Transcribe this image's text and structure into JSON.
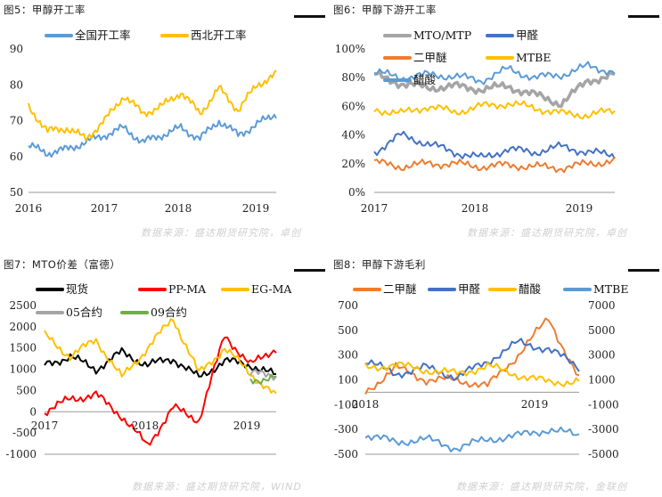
{
  "panels": [
    {
      "title": "图5：甲醇开工率",
      "source": ""
    },
    {
      "title": "图6：甲醇下游开工率",
      "source": "数据来源：盛达期货研究院，卓创"
    },
    {
      "title": "图7：MTO价差（富德）",
      "source": ""
    },
    {
      "title": "图8：甲醇下游毛利",
      "source": "数据来源：盛达期货研究院，WIND"
    }
  ],
  "footer_right": "数据来源：盛达期货研究院，金联创",
  "source_left_top": "数据来源：盛达期货研究院，卓创",
  "colors": {
    "blue": "#5b9bd5",
    "gold": "#ffc000",
    "orange": "#ed7d31",
    "darkblue": "#4472c4",
    "gray": "#a5a5a5",
    "red": "#ff0000",
    "black": "#000000",
    "green": "#70ad47"
  },
  "chart_data": [
    {
      "type": "line",
      "x": [
        2016.0,
        2016.25,
        2016.5,
        2016.75,
        2017.0,
        2017.25,
        2017.5,
        2017.75,
        2018.0,
        2018.25,
        2018.5,
        2018.75,
        2019.0,
        2019.25
      ],
      "xticks": [
        "2016",
        "2017",
        "2018",
        "2019"
      ],
      "ylim": [
        50,
        90
      ],
      "yticks": [
        "50",
        "60",
        "70",
        "80",
        "90"
      ],
      "series": [
        {
          "name": "全国开工率",
          "color": "#5b9bd5",
          "values": [
            63,
            61,
            62,
            64,
            66,
            68,
            64,
            66,
            68,
            65,
            70,
            66,
            69,
            72
          ]
        },
        {
          "name": "西北开工率",
          "color": "#ffc000",
          "values": [
            74,
            67,
            68,
            65,
            70,
            77,
            72,
            74,
            78,
            72,
            79,
            73,
            80,
            83
          ]
        }
      ]
    },
    {
      "type": "line",
      "x": [
        2017.0,
        2017.25,
        2017.5,
        2017.75,
        2018.0,
        2018.25,
        2018.5,
        2018.75,
        2019.0,
        2019.25
      ],
      "xticks": [
        "2017",
        "2018",
        "2019"
      ],
      "ylim": [
        0,
        100
      ],
      "yticks": [
        "0%",
        "20%",
        "40%",
        "60%",
        "80%",
        "100%"
      ],
      "series": [
        {
          "name": "MTO/MTP",
          "color": "#a5a5a5",
          "values": [
            82,
            76,
            73,
            74,
            72,
            74,
            68,
            62,
            78,
            82
          ]
        },
        {
          "name": "甲醛",
          "color": "#4472c4",
          "values": [
            28,
            40,
            34,
            28,
            24,
            30,
            28,
            32,
            28,
            26
          ]
        },
        {
          "name": "二甲醚",
          "color": "#ed7d31",
          "values": [
            21,
            18,
            20,
            20,
            18,
            19,
            18,
            17,
            20,
            22
          ]
        },
        {
          "name": "MTBE",
          "color": "#ffc000",
          "values": [
            58,
            55,
            60,
            56,
            60,
            62,
            59,
            55,
            54,
            57
          ]
        },
        {
          "name": "醋酸",
          "color": "#5b9bd5",
          "values": [
            84,
            80,
            82,
            81,
            78,
            86,
            80,
            82,
            88,
            84
          ]
        }
      ]
    },
    {
      "type": "line",
      "x": [
        2017.0,
        2017.25,
        2017.5,
        2017.75,
        2018.0,
        2018.25,
        2018.5,
        2018.75,
        2019.0,
        2019.25
      ],
      "xticks": [
        "2017",
        "2018",
        "2019"
      ],
      "ylim": [
        -1000,
        2500
      ],
      "yticks": [
        "-1000",
        "-500",
        "0",
        "500",
        "1000",
        "1500",
        "2000",
        "2500"
      ],
      "series": [
        {
          "name": "现货",
          "color": "#000000",
          "values": [
            1100,
            1300,
            1000,
            1400,
            1100,
            1250,
            800,
            1200,
            1100,
            850
          ]
        },
        {
          "name": "PP-MA",
          "color": "#ff0000",
          "values": [
            0,
            300,
            400,
            -100,
            -800,
            100,
            -200,
            1800,
            1100,
            1500
          ]
        },
        {
          "name": "EG-MA",
          "color": "#ffc000",
          "values": [
            1800,
            1300,
            1700,
            800,
            1500,
            2200,
            900,
            1500,
            900,
            350
          ]
        },
        {
          "name": "05合约",
          "color": "#a5a5a5",
          "values": [
            null,
            null,
            null,
            null,
            null,
            null,
            null,
            null,
            900,
            850
          ]
        },
        {
          "name": "09合约",
          "color": "#70ad47",
          "values": [
            null,
            null,
            null,
            null,
            null,
            null,
            null,
            null,
            750,
            800
          ]
        }
      ]
    },
    {
      "type": "line",
      "x": [
        2018.0,
        2018.2,
        2018.4,
        2018.6,
        2018.8,
        2019.0,
        2019.2,
        2019.4
      ],
      "xticks": [
        "2018",
        "2019"
      ],
      "ylim_left": [
        -500,
        700
      ],
      "yticks_left": [
        "-500",
        "-300",
        "-100",
        "100",
        "300",
        "500",
        "700"
      ],
      "ylim_right": [
        -5000,
        7000
      ],
      "yticks_right": [
        "-5000",
        "-3000",
        "-1000",
        "1000",
        "3000",
        "5000",
        "7000"
      ],
      "series": [
        {
          "name": "二甲醚",
          "color": "#ed7d31",
          "axis": "left",
          "values": [
            0,
            200,
            100,
            100,
            50,
            300,
            600,
            100
          ]
        },
        {
          "name": "甲醛",
          "color": "#4472c4",
          "axis": "left",
          "values": [
            250,
            150,
            200,
            120,
            250,
            400,
            350,
            200
          ]
        },
        {
          "name": "醋酸",
          "color": "#ffc000",
          "axis": "right",
          "values": [
            2000,
            2200,
            1800,
            1500,
            2100,
            1400,
            800,
            900
          ]
        },
        {
          "name": "MTBE",
          "color": "#5b9bd5",
          "axis": "right",
          "values": [
            -3500,
            -4000,
            -3800,
            -4500,
            -3800,
            -3500,
            -3000,
            -3500
          ]
        }
      ]
    }
  ]
}
